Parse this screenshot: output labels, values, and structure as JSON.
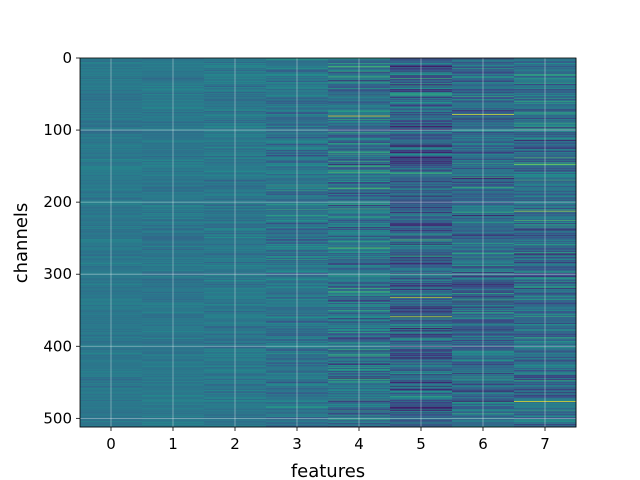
{
  "chart_data": {
    "type": "heatmap",
    "title": "",
    "xlabel": "features",
    "ylabel": "channels",
    "x_categories": [
      "0",
      "1",
      "2",
      "3",
      "4",
      "5",
      "6",
      "7"
    ],
    "y_ticks": [
      0,
      100,
      200,
      300,
      400,
      500
    ],
    "ylim": [
      512,
      0
    ],
    "rows": 512,
    "grid": true,
    "colormap": "viridis",
    "colormap_stops": [
      "#440154",
      "#3b528b",
      "#21918c",
      "#5ec962",
      "#fde725"
    ],
    "columns": [
      {
        "feature": "0",
        "mean": 0.4,
        "spread": 0.05
      },
      {
        "feature": "1",
        "mean": 0.4,
        "spread": 0.06
      },
      {
        "feature": "2",
        "mean": 0.4,
        "spread": 0.08
      },
      {
        "feature": "3",
        "mean": 0.39,
        "spread": 0.13
      },
      {
        "feature": "4",
        "mean": 0.38,
        "spread": 0.2
      },
      {
        "feature": "5",
        "mean": 0.32,
        "spread": 0.22
      },
      {
        "feature": "6",
        "mean": 0.36,
        "spread": 0.19
      },
      {
        "feature": "7",
        "mean": 0.36,
        "spread": 0.2
      }
    ],
    "highlights": [
      {
        "feature": "4",
        "channel": 80,
        "value": 0.95
      },
      {
        "feature": "4",
        "channel": 158,
        "value": 0.7
      },
      {
        "feature": "4",
        "channel": 263,
        "value": 0.72
      },
      {
        "feature": "5",
        "channel": 138,
        "value": 0.05
      },
      {
        "feature": "5",
        "channel": 252,
        "value": 0.7
      },
      {
        "feature": "5",
        "channel": 332,
        "value": 0.9
      },
      {
        "feature": "5",
        "channel": 358,
        "value": 0.85
      },
      {
        "feature": "6",
        "channel": 78,
        "value": 0.95
      },
      {
        "feature": "6",
        "channel": 218,
        "value": 0.05
      },
      {
        "feature": "6",
        "channel": 345,
        "value": 0.1
      },
      {
        "feature": "7",
        "channel": 147,
        "value": 0.8
      },
      {
        "feature": "7",
        "channel": 212,
        "value": 0.85
      },
      {
        "feature": "7",
        "channel": 476,
        "value": 0.98
      }
    ]
  }
}
